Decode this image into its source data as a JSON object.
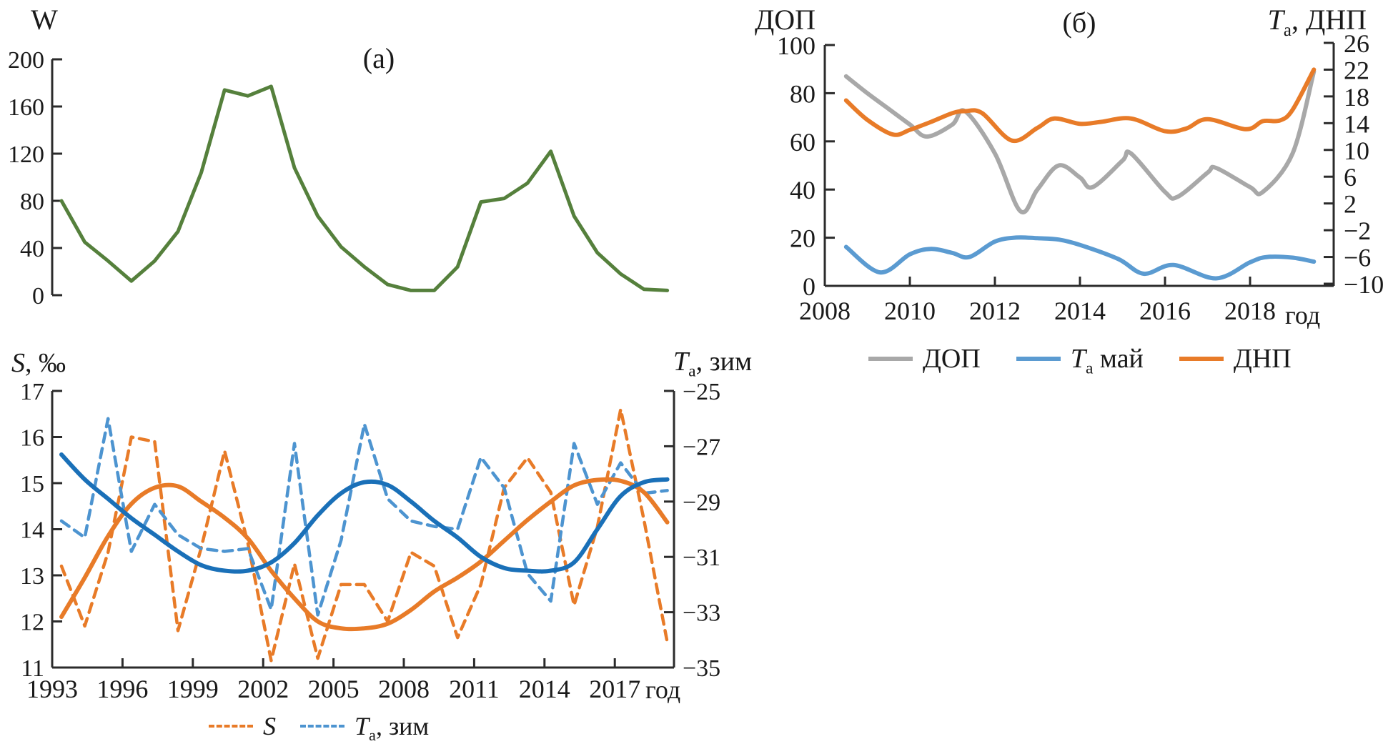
{
  "colors": {
    "green": "#55803c",
    "orange": "#e87b28",
    "blue_solid": "#1a70b8",
    "blue_dashed": "#4d94d0",
    "gray": "#a8a8a8",
    "blue_b": "#5b9bd1",
    "axis": "#2b2b2b"
  },
  "chart_data": [
    {
      "id": "a",
      "type": "line",
      "panel_label": "(а)",
      "y_axis_title": "W",
      "y_ticks": [
        200,
        160,
        120,
        80,
        40,
        0
      ],
      "ylim": [
        0,
        200
      ],
      "x_years": [
        1993,
        1994,
        1995,
        1996,
        1997,
        1998,
        1999,
        2000,
        2001,
        2002,
        2003,
        2004,
        2005,
        2006,
        2007,
        2008,
        2009,
        2010,
        2011,
        2012,
        2013,
        2014,
        2015,
        2016,
        2017,
        2018,
        2019
      ],
      "values": [
        80,
        45,
        29,
        12,
        29,
        54,
        104,
        174,
        169,
        177,
        108,
        67,
        41,
        24,
        9,
        4,
        4,
        24,
        79,
        82,
        95,
        122,
        67,
        36,
        18,
        5,
        4
      ]
    },
    {
      "id": "s",
      "type": "line",
      "left_axis_title": {
        "main": "S",
        "rest": ", ‰"
      },
      "right_axis_title": {
        "main": "T",
        "sub": "a",
        "rest": ", зим"
      },
      "x_axis_title": "год",
      "left_ticks": [
        17,
        16,
        15,
        14,
        13,
        12,
        11
      ],
      "right_ticks": [
        -25,
        -27,
        -29,
        -31,
        -33,
        -35
      ],
      "x_ticks": [
        1993,
        1996,
        1999,
        2002,
        2005,
        2008,
        2011,
        2014,
        2017
      ],
      "left_lim": [
        11,
        17
      ],
      "right_lim": [
        -35,
        -25
      ],
      "x_years": [
        1993,
        1994,
        1995,
        1996,
        1997,
        1998,
        1999,
        2000,
        2001,
        2002,
        2003,
        2004,
        2005,
        2006,
        2007,
        2008,
        2009,
        2010,
        2011,
        2012,
        2013,
        2014,
        2015,
        2016,
        2017,
        2018,
        2019
      ],
      "series": [
        {
          "name": "S-dashed",
          "axis": "left",
          "style": "dashed",
          "smooth": false,
          "color_key": "orange",
          "values": [
            13.2,
            11.9,
            13.5,
            16.0,
            15.9,
            11.8,
            13.6,
            15.7,
            13.7,
            11.15,
            13.25,
            11.2,
            12.8,
            12.8,
            12.0,
            13.5,
            13.2,
            11.65,
            12.8,
            14.9,
            15.55,
            14.8,
            12.35,
            14.05,
            16.6,
            14.2,
            11.55
          ]
        },
        {
          "name": "Ta-zim-dashed",
          "axis": "right",
          "style": "dashed",
          "smooth": false,
          "color_key": "blue_dashed",
          "values": [
            -29.7,
            -30.3,
            -26.0,
            -30.8,
            -29.1,
            -30.2,
            -30.7,
            -30.8,
            -30.7,
            -32.9,
            -26.9,
            -33.1,
            -30.4,
            -26.2,
            -28.9,
            -29.7,
            -29.9,
            -30.0,
            -27.4,
            -28.5,
            -31.6,
            -32.6,
            -26.9,
            -29.1,
            -27.6,
            -28.7,
            -28.6
          ]
        },
        {
          "name": "S-trend",
          "axis": "left",
          "style": "solid",
          "smooth": true,
          "color_key": "orange",
          "values": [
            12.1,
            12.95,
            13.85,
            14.55,
            14.9,
            14.93,
            14.6,
            14.25,
            13.8,
            13.1,
            12.5,
            12.0,
            11.85,
            11.85,
            11.95,
            12.25,
            12.65,
            12.95,
            13.3,
            13.75,
            14.2,
            14.6,
            14.95,
            15.07,
            15.05,
            14.8,
            14.15
          ]
        },
        {
          "name": "Ta-zim-trend",
          "axis": "right",
          "style": "solid",
          "smooth": true,
          "color_key": "blue_solid",
          "values": [
            -27.3,
            -28.2,
            -28.9,
            -29.6,
            -30.2,
            -30.8,
            -31.3,
            -31.5,
            -31.5,
            -31.2,
            -30.5,
            -29.5,
            -28.7,
            -28.3,
            -28.4,
            -29.0,
            -29.7,
            -30.3,
            -31.0,
            -31.4,
            -31.5,
            -31.5,
            -31.2,
            -30.0,
            -28.8,
            -28.3,
            -28.2
          ]
        }
      ],
      "legend": [
        {
          "label": "S"
        },
        {
          "label": {
            "main": "T",
            "sub": "a",
            "rest": ", зим"
          }
        }
      ]
    },
    {
      "id": "b",
      "type": "line",
      "panel_label": "(б)",
      "left_axis_title": "ДОП",
      "right_axis_title": {
        "main": "T",
        "sub": "a",
        "rest": ", ДНП"
      },
      "x_axis_title": "год",
      "left_ticks": [
        100,
        80,
        60,
        40,
        20,
        0
      ],
      "right_ticks": [
        26,
        22,
        18,
        14,
        10,
        6,
        2,
        -2,
        -6,
        -10
      ],
      "x_ticks": [
        2008,
        2010,
        2012,
        2014,
        2016,
        2018
      ],
      "left_lim": [
        0,
        100
      ],
      "right_lim": [
        -10,
        26
      ],
      "series": [
        {
          "name": "DOP",
          "axis": "left",
          "style": "solid",
          "smooth": true,
          "color_key": "gray",
          "x": [
            2008.5,
            2009,
            2009.5,
            2010,
            2010.4,
            2011,
            2011.3,
            2012,
            2012.6,
            2013,
            2013.5,
            2014,
            2014.3,
            2015,
            2015.2,
            2016,
            2016.3,
            2017,
            2017.2,
            2018,
            2018.3,
            2019,
            2019.5
          ],
          "values": [
            87,
            80,
            73.5,
            67,
            62,
            67,
            72.5,
            55,
            31,
            40,
            50,
            45,
            41,
            52,
            55,
            39,
            37,
            47,
            49,
            41,
            39,
            55,
            89
          ]
        },
        {
          "name": "Ta-may",
          "axis": "right",
          "style": "solid",
          "smooth": true,
          "color_key": "blue_b",
          "x": [
            2008.5,
            2009.3,
            2010,
            2010.5,
            2011,
            2011.4,
            2012,
            2012.5,
            2013,
            2013.5,
            2014,
            2014.9,
            2015.5,
            2016.2,
            2017.2,
            2018,
            2018.4,
            2019,
            2019.5
          ],
          "values": [
            -4.5,
            -8.3,
            -5.6,
            -4.8,
            -5.4,
            -6.0,
            -3.7,
            -3.1,
            -3.2,
            -3.4,
            -4.2,
            -6.3,
            -8.5,
            -7.2,
            -9.2,
            -6.8,
            -6.0,
            -6.1,
            -6.7
          ]
        },
        {
          "name": "DNP",
          "axis": "right",
          "style": "solid",
          "smooth": true,
          "color_key": "orange",
          "x": [
            2008.5,
            2009,
            2009.6,
            2010,
            2010.5,
            2011,
            2011.3,
            2011.7,
            2012.4,
            2013,
            2013.4,
            2014,
            2014.5,
            2015.2,
            2016,
            2016.5,
            2017,
            2017.9,
            2018.3,
            2018.7,
            2019,
            2019.5
          ],
          "values": [
            17.4,
            14.5,
            12.3,
            13,
            14.2,
            15.5,
            15.8,
            15.5,
            11.4,
            13.3,
            14.7,
            13.9,
            14.2,
            14.7,
            12.8,
            13.2,
            14.6,
            13.1,
            14.3,
            14.4,
            16,
            22
          ]
        }
      ],
      "legend": [
        {
          "label": "ДОП"
        },
        {
          "label": {
            "main": "T",
            "sub": "a",
            "rest": " май"
          }
        },
        {
          "label": "ДНП"
        }
      ]
    }
  ]
}
